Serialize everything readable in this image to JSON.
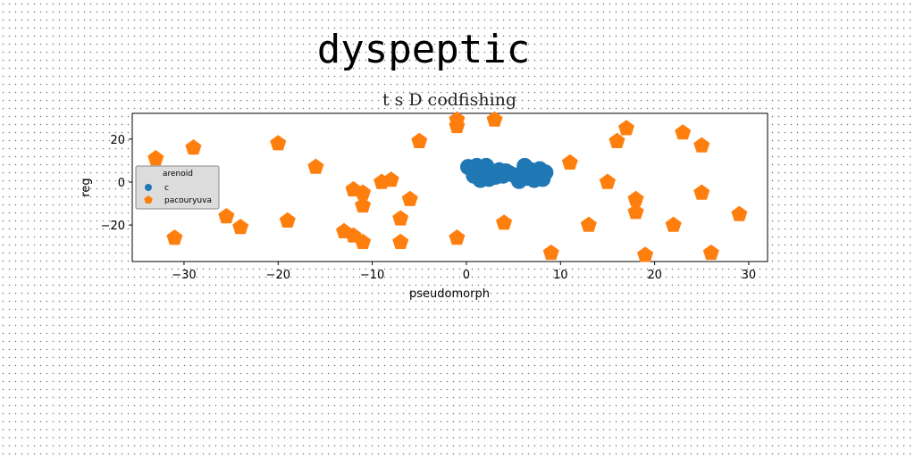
{
  "chart_data": {
    "type": "scatter",
    "suptitle": "dyspeptic",
    "title": "t s D codfishing",
    "xlabel": "pseudomorph",
    "ylabel": "reg",
    "xlim": [
      -35.5,
      32
    ],
    "ylim": [
      -37,
      32
    ],
    "xticks": [
      -30,
      -20,
      -10,
      0,
      10,
      20,
      30
    ],
    "yticks": [
      -20,
      0,
      20
    ],
    "grid": false,
    "legend": {
      "title": "arenoid",
      "placement": "center-left"
    },
    "series": [
      {
        "name": "c",
        "color": "#1f77b4",
        "marker": "circle",
        "points": [
          [
            0.2,
            7
          ],
          [
            0.8,
            3
          ],
          [
            1.1,
            7.5
          ],
          [
            1.5,
            1
          ],
          [
            1.8,
            4
          ],
          [
            2.1,
            7.5
          ],
          [
            2.4,
            1.5
          ],
          [
            2.8,
            5
          ],
          [
            3.1,
            2.5
          ],
          [
            3.5,
            5.5
          ],
          [
            3.9,
            3
          ],
          [
            4.2,
            5
          ],
          [
            4.6,
            4
          ],
          [
            5.2,
            3
          ],
          [
            5.6,
            0.5
          ],
          [
            6,
            4.5
          ],
          [
            6.2,
            7.5
          ],
          [
            6.5,
            2
          ],
          [
            6.9,
            5.5
          ],
          [
            7.2,
            1
          ],
          [
            7.5,
            4
          ],
          [
            7.8,
            6
          ],
          [
            8.1,
            1.5
          ],
          [
            8.4,
            4.5
          ]
        ]
      },
      {
        "name": "pacouryuva",
        "color": "#ff7f0e",
        "marker": "pentagon",
        "points": [
          [
            -33,
            11
          ],
          [
            -31,
            -26
          ],
          [
            -29,
            16
          ],
          [
            -25.5,
            -16
          ],
          [
            -24,
            -21
          ],
          [
            -20,
            18
          ],
          [
            -19,
            -18
          ],
          [
            -16,
            7
          ],
          [
            -13,
            -23
          ],
          [
            -12,
            -3.5
          ],
          [
            -12,
            -25
          ],
          [
            -11,
            -5
          ],
          [
            -11,
            -11
          ],
          [
            -11,
            -28
          ],
          [
            -9,
            0
          ],
          [
            -8,
            1
          ],
          [
            -7,
            -17
          ],
          [
            -7,
            -28
          ],
          [
            -6,
            -8
          ],
          [
            -5,
            19
          ],
          [
            -1,
            29
          ],
          [
            -1,
            26
          ],
          [
            -1,
            -26
          ],
          [
            3,
            29
          ],
          [
            4,
            -19
          ],
          [
            9,
            -33
          ],
          [
            11,
            9
          ],
          [
            13,
            -20
          ],
          [
            15,
            0
          ],
          [
            16,
            19
          ],
          [
            17,
            25
          ],
          [
            18,
            -8
          ],
          [
            18,
            -14
          ],
          [
            19,
            -34
          ],
          [
            22,
            -20
          ],
          [
            23,
            23
          ],
          [
            25,
            17
          ],
          [
            25,
            -5
          ],
          [
            26,
            -33
          ],
          [
            29,
            -15
          ]
        ]
      }
    ]
  }
}
